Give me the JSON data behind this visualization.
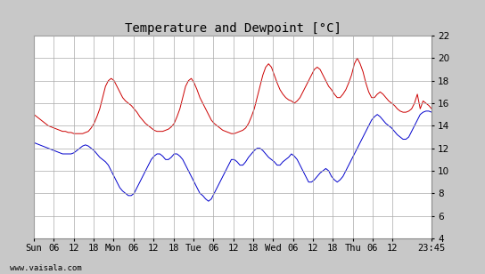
{
  "title": "Temperature and Dewpoint [°C]",
  "ylim": [
    4,
    22
  ],
  "yticks": [
    4,
    6,
    8,
    10,
    12,
    14,
    16,
    18,
    20,
    22
  ],
  "background_color": "#c8c8c8",
  "plot_bg_color": "#ffffff",
  "grid_color": "#aaaaaa",
  "temp_color": "#cc0000",
  "dewp_color": "#0000cc",
  "watermark": "www.vaisala.com",
  "title_fontsize": 10,
  "tick_fontsize": 7.5,
  "xtick_labels": [
    "Sun",
    "06",
    "12",
    "18",
    "Mon",
    "06",
    "12",
    "18",
    "Tue",
    "06",
    "12",
    "18",
    "Wed",
    "06",
    "12",
    "18",
    "Thu",
    "06",
    "12",
    "23:45"
  ],
  "xtick_positions": [
    0,
    6,
    12,
    18,
    24,
    30,
    36,
    42,
    48,
    54,
    60,
    66,
    72,
    78,
    84,
    90,
    96,
    102,
    108,
    119.75
  ],
  "xlim": [
    0,
    119.75
  ],
  "temp_data": [
    15.0,
    14.8,
    14.6,
    14.4,
    14.2,
    14.0,
    13.9,
    13.8,
    13.7,
    13.6,
    13.5,
    13.5,
    13.4,
    13.4,
    13.3,
    13.3,
    13.3,
    13.3,
    13.4,
    13.5,
    13.8,
    14.2,
    14.8,
    15.5,
    16.5,
    17.5,
    18.0,
    18.2,
    18.0,
    17.5,
    17.0,
    16.5,
    16.2,
    16.0,
    15.8,
    15.5,
    15.2,
    14.8,
    14.5,
    14.2,
    14.0,
    13.8,
    13.6,
    13.5,
    13.5,
    13.5,
    13.6,
    13.7,
    13.9,
    14.2,
    14.8,
    15.5,
    16.5,
    17.5,
    18.0,
    18.2,
    17.8,
    17.2,
    16.5,
    16.0,
    15.5,
    15.0,
    14.5,
    14.2,
    14.0,
    13.8,
    13.6,
    13.5,
    13.4,
    13.3,
    13.3,
    13.4,
    13.5,
    13.6,
    13.8,
    14.2,
    14.8,
    15.5,
    16.5,
    17.5,
    18.5,
    19.2,
    19.5,
    19.2,
    18.5,
    17.8,
    17.2,
    16.8,
    16.5,
    16.3,
    16.2,
    16.0,
    16.2,
    16.5,
    17.0,
    17.5,
    18.0,
    18.5,
    19.0,
    19.2,
    19.0,
    18.5,
    18.0,
    17.5,
    17.2,
    16.8,
    16.5,
    16.5,
    16.8,
    17.2,
    17.8,
    18.5,
    19.5,
    20.0,
    19.5,
    18.8,
    17.8,
    17.0,
    16.5,
    16.5,
    16.8,
    17.0,
    16.8,
    16.5,
    16.2,
    16.0,
    15.8,
    15.5,
    15.3,
    15.2,
    15.2,
    15.3,
    15.5,
    16.0,
    16.8,
    15.5,
    16.2,
    16.0,
    15.8,
    15.5
  ],
  "dewp_data": [
    12.5,
    12.4,
    12.3,
    12.2,
    12.1,
    12.0,
    11.9,
    11.8,
    11.7,
    11.6,
    11.5,
    11.5,
    11.5,
    11.5,
    11.6,
    11.8,
    12.0,
    12.2,
    12.3,
    12.2,
    12.0,
    11.8,
    11.5,
    11.2,
    11.0,
    10.8,
    10.5,
    10.0,
    9.5,
    9.0,
    8.5,
    8.2,
    8.0,
    7.8,
    7.8,
    8.0,
    8.5,
    9.0,
    9.5,
    10.0,
    10.5,
    11.0,
    11.3,
    11.5,
    11.5,
    11.3,
    11.0,
    11.0,
    11.2,
    11.5,
    11.5,
    11.3,
    11.0,
    10.5,
    10.0,
    9.5,
    9.0,
    8.5,
    8.0,
    7.8,
    7.5,
    7.3,
    7.5,
    8.0,
    8.5,
    9.0,
    9.5,
    10.0,
    10.5,
    11.0,
    11.0,
    10.8,
    10.5,
    10.5,
    10.8,
    11.2,
    11.5,
    11.8,
    12.0,
    12.0,
    11.8,
    11.5,
    11.2,
    11.0,
    10.8,
    10.5,
    10.5,
    10.8,
    11.0,
    11.2,
    11.5,
    11.3,
    11.0,
    10.5,
    10.0,
    9.5,
    9.0,
    9.0,
    9.2,
    9.5,
    9.8,
    10.0,
    10.2,
    10.0,
    9.5,
    9.2,
    9.0,
    9.2,
    9.5,
    10.0,
    10.5,
    11.0,
    11.5,
    12.0,
    12.5,
    13.0,
    13.5,
    14.0,
    14.5,
    14.8,
    15.0,
    14.8,
    14.5,
    14.2,
    14.0,
    13.8,
    13.5,
    13.2,
    13.0,
    12.8,
    12.8,
    13.0,
    13.5,
    14.0,
    14.5,
    15.0,
    15.2,
    15.3,
    15.3,
    15.2
  ]
}
